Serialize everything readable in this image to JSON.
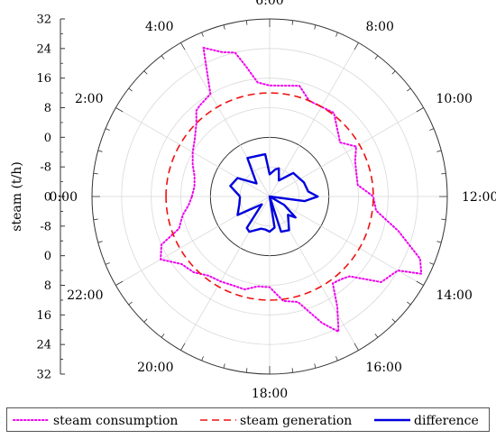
{
  "chart_data": {
    "type": "polar-line",
    "ylabel": "steam (t/h)",
    "radial_ticks_upper": [
      "32",
      "24",
      "16",
      "8",
      "0",
      "-8"
    ],
    "radial_tick_center": "0",
    "radial_ticks_lower": [
      "-8",
      "0",
      "8",
      "16",
      "24",
      "32"
    ],
    "radial_range": [
      -16,
      32
    ],
    "angular_labels": [
      "0:00",
      "2:00",
      "4:00",
      "6:00",
      "8:00",
      "10:00",
      "12:00",
      "14:00",
      "16:00",
      "18:00",
      "20:00",
      "22:00"
    ],
    "angular_label_hours": [
      0,
      2,
      4,
      6,
      8,
      10,
      12,
      14,
      16,
      18,
      20,
      22
    ],
    "grid": true,
    "legend_position": "bottom",
    "series": [
      {
        "name": "steam consumption",
        "color": "#ee00ee",
        "style": "dotted",
        "points": [
          [
            0.0,
            5.0
          ],
          [
            0.5,
            4.5
          ],
          [
            1.0,
            5.0
          ],
          [
            1.5,
            6.5
          ],
          [
            2.0,
            8.0
          ],
          [
            2.5,
            9.5
          ],
          [
            3.0,
            12.0
          ],
          [
            3.3,
            14.5
          ],
          [
            3.5,
            15.0
          ],
          [
            4.0,
            16.0
          ],
          [
            4.4,
            28.0
          ],
          [
            4.8,
            25.0
          ],
          [
            5.1,
            24.0
          ],
          [
            5.3,
            20.0
          ],
          [
            5.6,
            15.0
          ],
          [
            6.0,
            14.0
          ],
          [
            7.0,
            15.0
          ],
          [
            7.5,
            12.0
          ],
          [
            8.5,
            12.5
          ],
          [
            9.5,
            8.0
          ],
          [
            10.0,
            11.0
          ],
          [
            10.5,
            9.0
          ],
          [
            11.5,
            8.0
          ],
          [
            12.0,
            12.0
          ],
          [
            12.5,
            13.0
          ],
          [
            13.0,
            20.0
          ],
          [
            13.5,
            28.0
          ],
          [
            13.8,
            30.0
          ],
          [
            14.0,
            24.0
          ],
          [
            14.5,
            22.0
          ],
          [
            15.0,
            14.5
          ],
          [
            15.3,
            13.5
          ],
          [
            15.6,
            13.0
          ],
          [
            15.9,
            19.0
          ],
          [
            16.2,
            25.0
          ],
          [
            16.5,
            21.0
          ],
          [
            17.0,
            13.5
          ],
          [
            17.5,
            12.5
          ],
          [
            18.0,
            8.5
          ],
          [
            18.5,
            8.5
          ],
          [
            19.0,
            10.0
          ],
          [
            19.5,
            10.0
          ],
          [
            20.0,
            10.5
          ],
          [
            20.5,
            11.0
          ],
          [
            21.0,
            13.0
          ],
          [
            21.5,
            14.0
          ],
          [
            22.0,
            18.0
          ],
          [
            22.4,
            16.0
          ],
          [
            22.7,
            10.0
          ],
          [
            23.2,
            8.0
          ],
          [
            23.6,
            6.0
          ],
          [
            24.0,
            5.0
          ]
        ]
      },
      {
        "name": "steam generation",
        "color": "#ee1111",
        "style": "dashed",
        "points": [
          [
            0.0,
            12.0
          ],
          [
            24.0,
            12.0
          ]
        ]
      },
      {
        "name": "difference",
        "color": "#0000dd",
        "style": "solid",
        "points": [
          [
            0.0,
            -8.0
          ],
          [
            1.0,
            -5.0
          ],
          [
            2.0,
            -6.0
          ],
          [
            3.0,
            -11.0
          ],
          [
            4.0,
            -4.0
          ],
          [
            5.6,
            -4.5
          ],
          [
            6.0,
            -10.0
          ],
          [
            6.8,
            -8.5
          ],
          [
            7.2,
            -8.0
          ],
          [
            8.0,
            -11.0
          ],
          [
            9.0,
            -7.0
          ],
          [
            10.5,
            -6.0
          ],
          [
            11.5,
            -5.5
          ],
          [
            12.0,
            -3.0
          ],
          [
            12.5,
            -6.5
          ],
          [
            13.0,
            -16.0
          ],
          [
            14.0,
            -11.5
          ],
          [
            14.6,
            -7.0
          ],
          [
            15.0,
            -9.0
          ],
          [
            16.0,
            -5.5
          ],
          [
            16.8,
            -6.0
          ],
          [
            17.0,
            -16.0
          ],
          [
            17.4,
            -7.5
          ],
          [
            18.0,
            -6.5
          ],
          [
            18.5,
            -7.0
          ],
          [
            19.0,
            -7.0
          ],
          [
            20.0,
            -5.0
          ],
          [
            20.4,
            -5.5
          ],
          [
            21.0,
            -13.0
          ],
          [
            22.0,
            -6.0
          ],
          [
            23.0,
            -7.5
          ],
          [
            24.0,
            -8.0
          ]
        ]
      }
    ]
  }
}
